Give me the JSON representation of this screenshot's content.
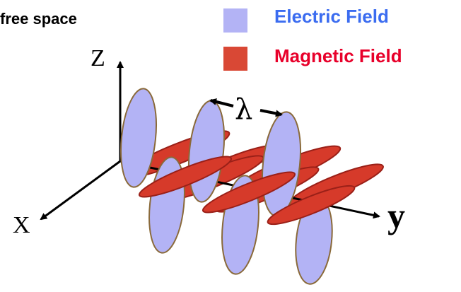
{
  "title": "free space",
  "legend": [
    {
      "label": "Electric Field",
      "color": "#b3b3f5",
      "text_color": "#3b6cf0"
    },
    {
      "label": "Magnetic Field",
      "color": "#d94835",
      "text_color": "#e8002a"
    }
  ],
  "axes": {
    "z": "Z",
    "x": "X",
    "y": "y"
  },
  "wavelength_symbol": "λ",
  "colors": {
    "electric_fill": "#b3b3f5",
    "electric_outline": "#8a6a3a",
    "magnetic_fill": "#d63a2a",
    "magnetic_outline": "#9a2018",
    "axis": "#000000"
  }
}
